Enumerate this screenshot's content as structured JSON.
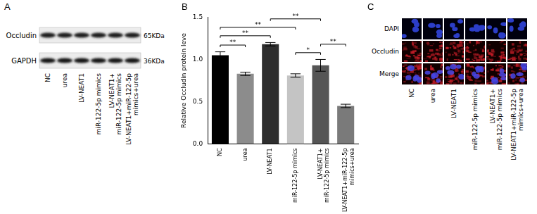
{
  "panel_labels": [
    "A",
    "B",
    "C"
  ],
  "blot": {
    "rows": [
      {
        "label": "Occludin",
        "size": "65KDa"
      },
      {
        "label": "GAPDH",
        "size": "36KDa"
      }
    ],
    "lanes": [
      "NC",
      "urea",
      "LV-NEAT1",
      "miR-122-5p mimics",
      "LV-NEAT1+ miR-122-5p mimics",
      "LV-NEAT1+miR-122-5p mimics+urea"
    ]
  },
  "chart_data": {
    "type": "bar",
    "categories": [
      "NC",
      "urea",
      "LV-NEAT1",
      "miR-122-5p mimics",
      "LV-NEAT1+ miR-122-5p mimics",
      "LV-NEAT1+miR-122-5p mimics+urea"
    ],
    "values": [
      1.05,
      0.83,
      1.18,
      0.81,
      0.93,
      0.45
    ],
    "errors": [
      0.04,
      0.02,
      0.02,
      0.02,
      0.07,
      0.02
    ],
    "colors": [
      "#000000",
      "#8c8c8c",
      "#2e2e2e",
      "#c4c4c4",
      "#555555",
      "#7a7a7a"
    ],
    "y_label": "Relative Occludin protein leve",
    "ylim": [
      0,
      1.5
    ],
    "yticks": [
      {
        "value": 0,
        "label": "0.0"
      },
      {
        "value": 0.5,
        "label": "0.5"
      },
      {
        "value": 1,
        "label": "1.0"
      },
      {
        "value": 1.5,
        "label": "1.5"
      }
    ],
    "grid": false,
    "annotations": [
      {
        "from": "NC",
        "to": "urea",
        "label": "**"
      },
      {
        "from": "NC",
        "to": "LV-NEAT1",
        "label": "**"
      },
      {
        "from": "NC",
        "to": "miR-122-5p mimics",
        "label": "**"
      },
      {
        "from": "LV-NEAT1",
        "to": "LV-NEAT1+ miR-122-5p mimics",
        "label": "**"
      },
      {
        "from": "miR-122-5p mimics",
        "to": "LV-NEAT1+ miR-122-5p mimics",
        "label": "*"
      },
      {
        "from": "LV-NEAT1+ miR-122-5p mimics",
        "to": "LV-NEAT1+miR-122-5p mimics+urea",
        "label": "**"
      }
    ]
  },
  "images": {
    "rows": [
      "DAPI",
      "Occludin",
      "Merge"
    ],
    "columns": [
      "NC",
      "urea",
      "LV-NEAT1",
      "miR-122-5p mimics",
      "LV-NEAT1+ miR-122-5p mimics",
      "LV-NEAT1+miR-122-5p mimics+urea"
    ]
  }
}
